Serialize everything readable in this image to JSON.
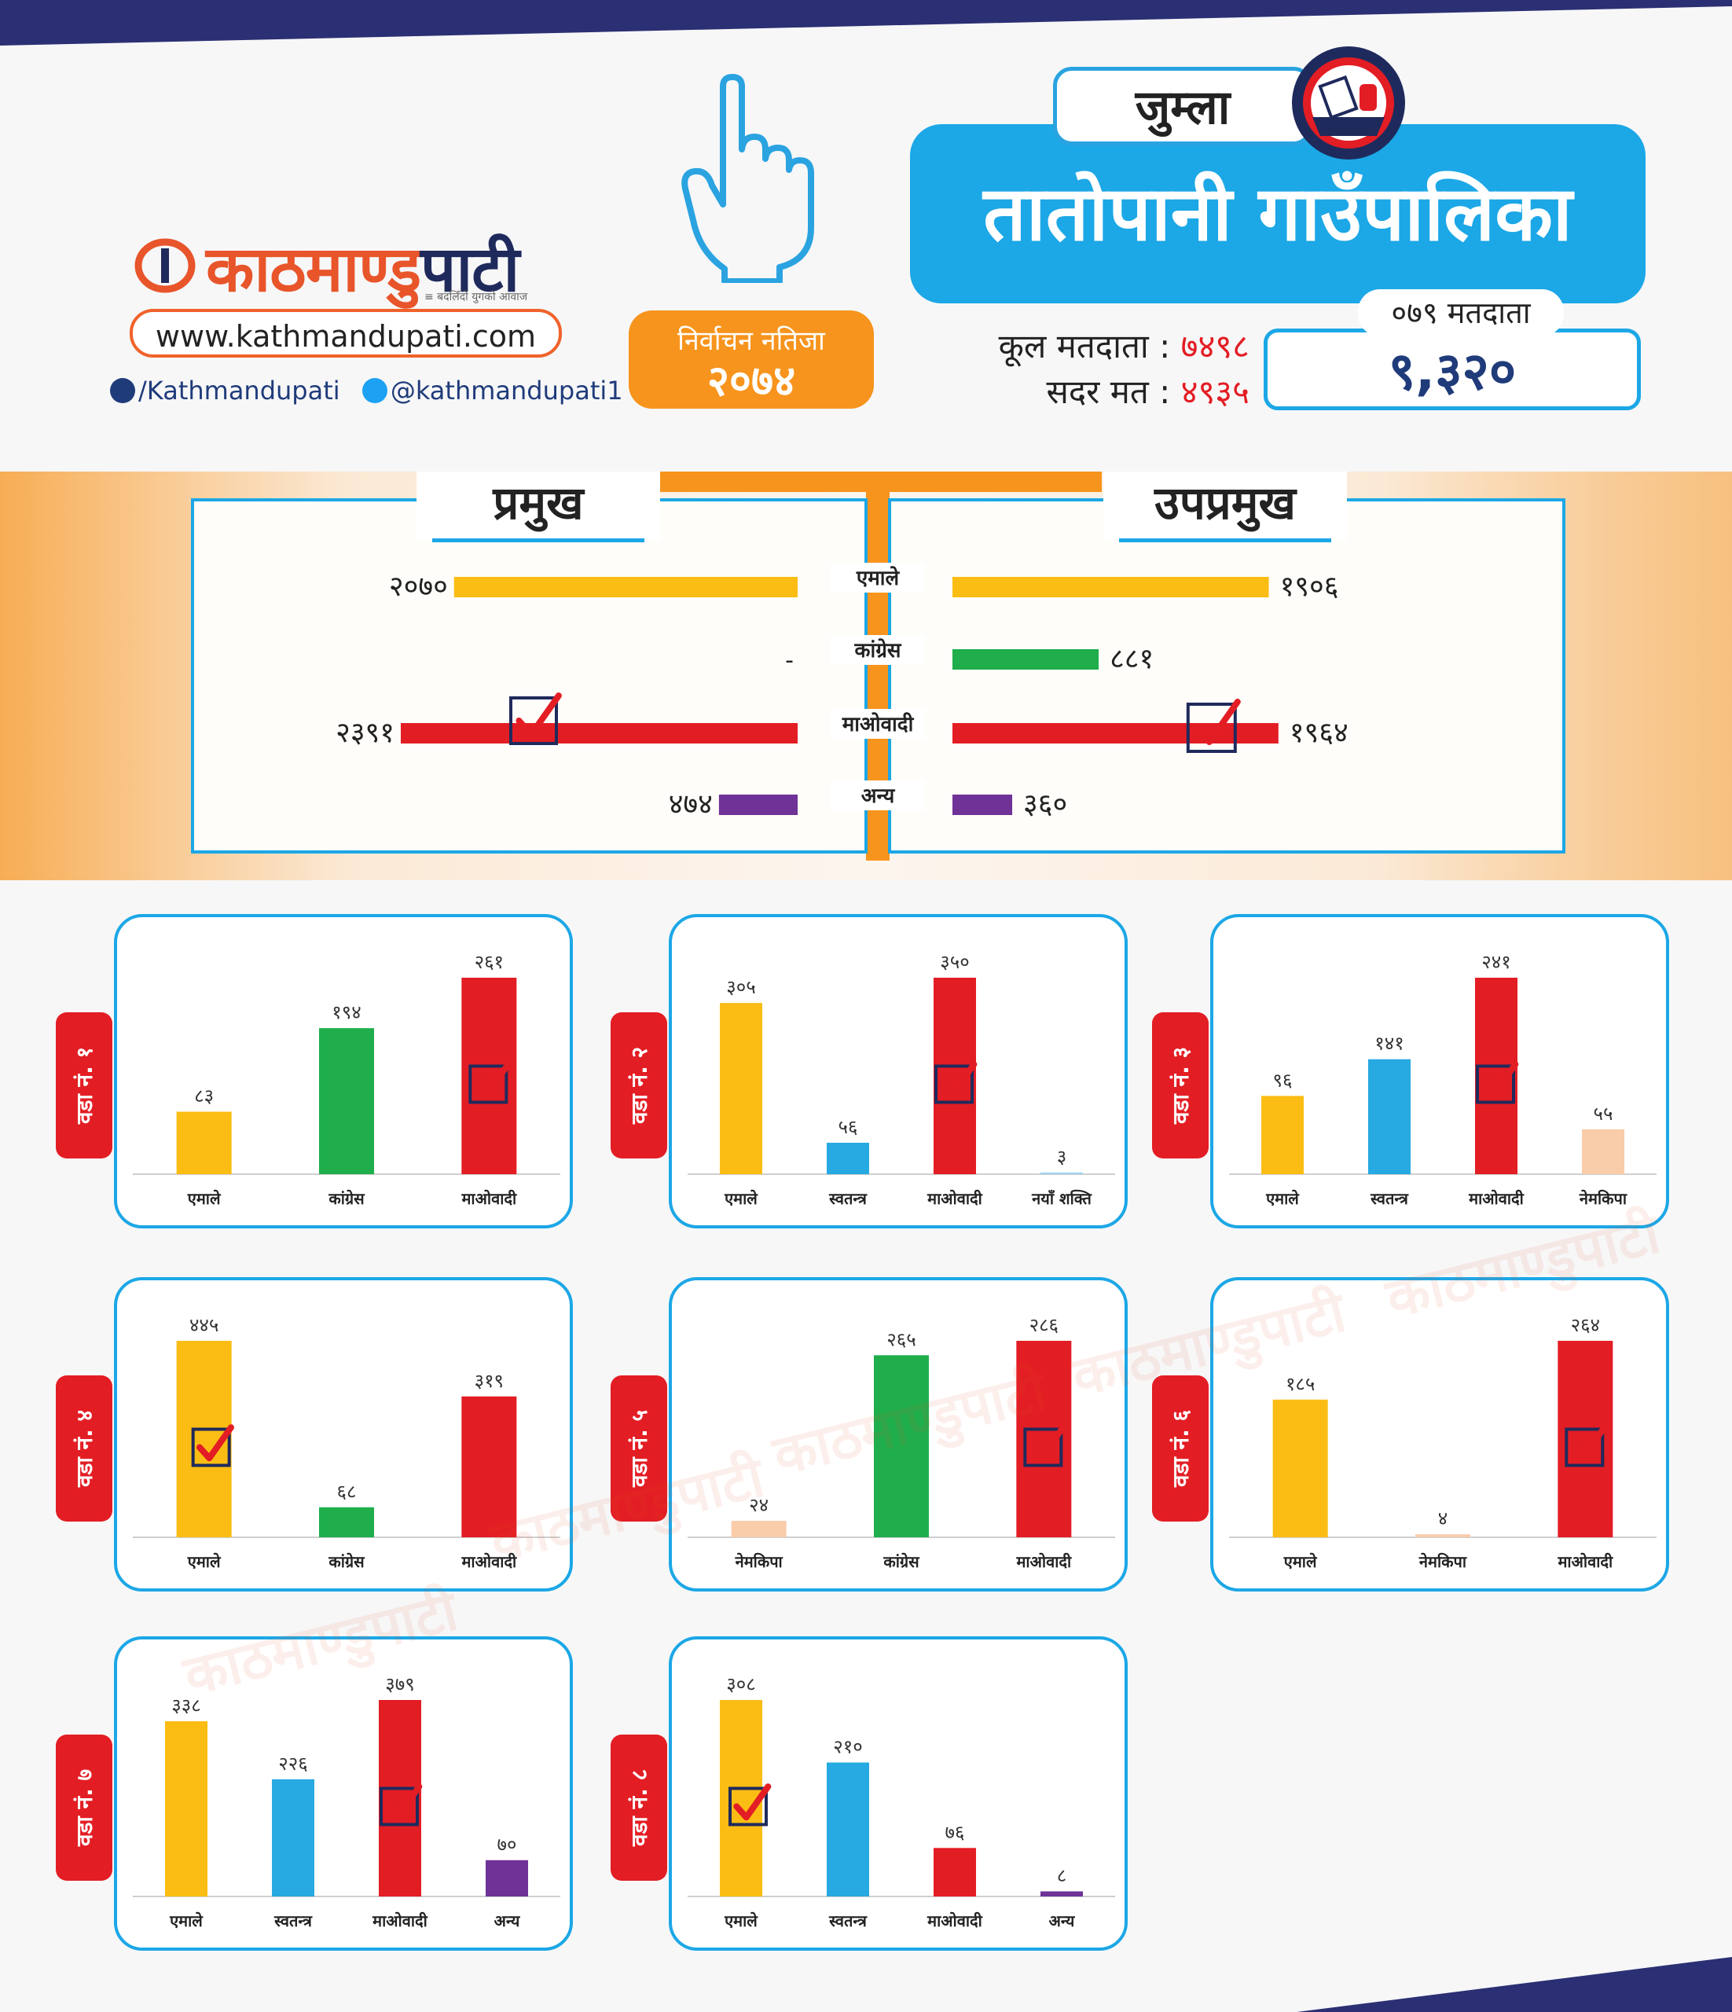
{
  "brand": {
    "name_part1": "काठमाण्डु",
    "name_part2": "पाटी",
    "tagline": "≡ बदलिँदो युगको आवाज",
    "website": "www.kathmandupati.com",
    "facebook": "/Kathmandupati",
    "twitter": "@kathmandupati1",
    "watermark": "काठमाण्डुपाटी"
  },
  "election": {
    "label": "निर्वाचन नतिजा",
    "year": "२०७४"
  },
  "header": {
    "district": "जुम्ला",
    "municipality": "तातोपानी गाउँपालिका",
    "total_voters_label": "कूल मतदाता :",
    "total_voters_value": "७४९८",
    "valid_votes_label": "सदर मत :",
    "valid_votes_value": "४९३५",
    "voters079_label": "०७९ मतदाता",
    "voters079_value": "९,३२०"
  },
  "colors": {
    "uml": "#fbbd14",
    "congress": "#1fae4b",
    "maoist": "#e31d24",
    "other": "#6f3297",
    "independent": "#27a9e1",
    "nemkipa": "#f9ccaa",
    "naya": "#9fd4ef",
    "accent_blue": "#1ca7e6",
    "orange": "#f7941d",
    "navy": "#1f2a5c"
  },
  "chart_data": [
    {
      "type": "bar",
      "title": "",
      "panels": [
        "प्रमुख",
        "उपप्रमुख"
      ],
      "categories": [
        "एमाले",
        "कांग्रेस",
        "माओवादी",
        "अन्य"
      ],
      "category_colors": [
        "uml",
        "congress",
        "maoist",
        "other"
      ],
      "series": [
        {
          "name": "प्रमुख",
          "values": [
            2070,
            null,
            2391,
            474
          ],
          "labels": [
            "२०७०",
            "-",
            "२३९१",
            "४७४"
          ],
          "winner_index": 2
        },
        {
          "name": "उपप्रमुख",
          "values": [
            1906,
            881,
            1964,
            360
          ],
          "labels": [
            "१९०६",
            "८८१",
            "१९६४",
            "३६०"
          ],
          "winner_index": 2
        }
      ]
    },
    {
      "type": "bar",
      "ward_label": "वडा नं. १",
      "categories": [
        "एमाले",
        "कांग्रेस",
        "माओवादी"
      ],
      "colors": [
        "uml",
        "congress",
        "maoist"
      ],
      "values": [
        83,
        194,
        261
      ],
      "labels": [
        "८३",
        "१९४",
        "२६१"
      ],
      "winner_index": 2
    },
    {
      "type": "bar",
      "ward_label": "वडा नं. २",
      "categories": [
        "एमाले",
        "स्वतन्त्र",
        "माओवादी",
        "नयाँ शक्ति"
      ],
      "colors": [
        "uml",
        "independent",
        "maoist",
        "naya"
      ],
      "values": [
        305,
        56,
        350,
        3
      ],
      "labels": [
        "३०५",
        "५६",
        "३५०",
        "३"
      ],
      "winner_index": 2
    },
    {
      "type": "bar",
      "ward_label": "वडा नं. ३",
      "categories": [
        "एमाले",
        "स्वतन्त्र",
        "माओवादी",
        "नेमकिपा"
      ],
      "colors": [
        "uml",
        "independent",
        "maoist",
        "nemkipa"
      ],
      "values": [
        96,
        141,
        241,
        55
      ],
      "labels": [
        "९६",
        "१४१",
        "२४१",
        "५५"
      ],
      "winner_index": 2
    },
    {
      "type": "bar",
      "ward_label": "वडा नं. ४",
      "categories": [
        "एमाले",
        "कांग्रेस",
        "माओवादी"
      ],
      "colors": [
        "uml",
        "congress",
        "maoist"
      ],
      "values": [
        445,
        68,
        319
      ],
      "labels": [
        "४४५",
        "६८",
        "३१९"
      ],
      "winner_index": 0
    },
    {
      "type": "bar",
      "ward_label": "वडा नं. ५",
      "categories": [
        "नेमकिपा",
        "कांग्रेस",
        "माओवादी"
      ],
      "colors": [
        "nemkipa",
        "congress",
        "maoist"
      ],
      "values": [
        24,
        265,
        286
      ],
      "labels": [
        "२४",
        "२६५",
        "२८६"
      ],
      "winner_index": 2
    },
    {
      "type": "bar",
      "ward_label": "वडा नं. ६",
      "categories": [
        "एमाले",
        "नेमकिपा",
        "माओवादी"
      ],
      "colors": [
        "uml",
        "nemkipa",
        "maoist"
      ],
      "values": [
        185,
        4,
        264
      ],
      "labels": [
        "१८५",
        "४",
        "२६४"
      ],
      "winner_index": 2
    },
    {
      "type": "bar",
      "ward_label": "वडा नं. ७",
      "categories": [
        "एमाले",
        "स्वतन्त्र",
        "माओवादी",
        "अन्य"
      ],
      "colors": [
        "uml",
        "independent",
        "maoist",
        "other"
      ],
      "values": [
        338,
        226,
        379,
        70
      ],
      "labels": [
        "३३८",
        "२२६",
        "३७९",
        "७०"
      ],
      "winner_index": 2
    },
    {
      "type": "bar",
      "ward_label": "वडा नं. ८",
      "categories": [
        "एमाले",
        "स्वतन्त्र",
        "माओवादी",
        "अन्य"
      ],
      "colors": [
        "uml",
        "independent",
        "maoist",
        "other"
      ],
      "values": [
        308,
        210,
        76,
        8
      ],
      "labels": [
        "३०८",
        "२१०",
        "७६",
        "८"
      ],
      "winner_index": 0
    }
  ]
}
